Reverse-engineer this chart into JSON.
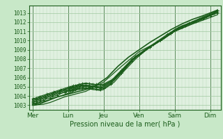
{
  "title": "",
  "xlabel": "Pression niveau de la mer( hPa )",
  "ylabel": "",
  "background_color": "#c8e8c8",
  "plot_bg_color": "#e0f0e0",
  "grid_major_color": "#a0c8a0",
  "grid_minor_color": "#b8d8b8",
  "line_color": "#1a5c1a",
  "vline_color": "#5a8a5a",
  "ylim": [
    1002.5,
    1013.8
  ],
  "yticks": [
    1003,
    1004,
    1005,
    1006,
    1007,
    1008,
    1009,
    1010,
    1011,
    1012,
    1013
  ],
  "xtick_labels": [
    "Mer",
    "Lun",
    "Jeu",
    "Ven",
    "Sam",
    "Dim"
  ],
  "xtick_positions": [
    0,
    1,
    2,
    3,
    4,
    5
  ],
  "xlim": [
    -0.1,
    5.3
  ],
  "lines": [
    {
      "x": [
        0.0,
        0.15,
        0.3,
        0.5,
        0.7,
        0.9,
        1.0,
        1.1,
        1.2,
        1.5,
        2.0,
        2.5,
        3.0,
        3.5,
        4.0,
        4.5,
        5.0,
        5.2
      ],
      "y": [
        1003.0,
        1003.05,
        1003.1,
        1003.3,
        1003.6,
        1003.9,
        1004.0,
        1004.1,
        1004.2,
        1004.5,
        1005.5,
        1007.2,
        1008.8,
        1009.8,
        1011.0,
        1011.8,
        1012.5,
        1012.8
      ],
      "marker": null,
      "lw": 0.9
    },
    {
      "x": [
        0.0,
        0.1,
        0.2,
        0.4,
        0.6,
        0.8,
        1.0,
        1.1,
        1.15,
        1.2,
        1.3,
        1.4,
        1.5,
        1.6,
        1.7,
        1.8,
        1.9,
        2.0,
        2.3,
        2.6,
        2.9,
        3.2,
        3.5,
        3.8,
        4.0,
        4.2,
        4.5,
        4.8,
        5.0,
        5.2
      ],
      "y": [
        1003.1,
        1003.15,
        1003.3,
        1003.5,
        1003.8,
        1004.0,
        1004.3,
        1004.4,
        1004.5,
        1004.6,
        1004.7,
        1004.75,
        1004.8,
        1004.75,
        1004.7,
        1004.65,
        1004.6,
        1004.7,
        1005.5,
        1006.8,
        1008.0,
        1009.0,
        1009.8,
        1010.5,
        1011.2,
        1011.6,
        1012.0,
        1012.4,
        1012.7,
        1013.0
      ],
      "marker": null,
      "lw": 0.9
    },
    {
      "x": [
        0.0,
        0.1,
        0.2,
        0.3,
        0.5,
        0.7,
        0.9,
        1.0,
        1.05,
        1.1,
        1.15,
        1.2,
        1.3,
        1.4,
        1.5,
        1.6,
        1.7,
        1.8,
        1.9,
        2.0,
        2.2,
        2.5,
        2.8,
        3.0,
        3.3,
        3.6,
        3.9,
        4.2,
        4.5,
        4.8,
        5.0,
        5.2
      ],
      "y": [
        1003.2,
        1003.25,
        1003.4,
        1003.55,
        1003.8,
        1004.1,
        1004.4,
        1004.5,
        1004.55,
        1004.6,
        1004.65,
        1004.7,
        1004.8,
        1004.85,
        1004.9,
        1004.85,
        1004.8,
        1004.75,
        1004.7,
        1004.8,
        1005.3,
        1006.5,
        1007.8,
        1008.5,
        1009.3,
        1010.0,
        1010.8,
        1011.5,
        1012.0,
        1012.4,
        1012.7,
        1013.0
      ],
      "marker": "+",
      "lw": 0.8
    },
    {
      "x": [
        0.0,
        0.1,
        0.2,
        0.35,
        0.55,
        0.75,
        0.95,
        1.0,
        1.05,
        1.1,
        1.15,
        1.2,
        1.25,
        1.3,
        1.4,
        1.5,
        1.6,
        1.7,
        1.8,
        1.9,
        2.0,
        2.2,
        2.5,
        2.8,
        3.0,
        3.3,
        3.6,
        3.9,
        4.2,
        4.5,
        4.8,
        5.0,
        5.2
      ],
      "y": [
        1003.3,
        1003.4,
        1003.55,
        1003.75,
        1004.0,
        1004.3,
        1004.55,
        1004.6,
        1004.65,
        1004.7,
        1004.75,
        1004.8,
        1004.85,
        1004.9,
        1005.0,
        1005.05,
        1005.0,
        1004.95,
        1004.9,
        1004.85,
        1004.9,
        1005.4,
        1006.5,
        1007.8,
        1008.5,
        1009.3,
        1010.0,
        1010.8,
        1011.5,
        1012.0,
        1012.5,
        1012.8,
        1013.1
      ],
      "marker": "+",
      "lw": 0.8
    },
    {
      "x": [
        0.0,
        0.1,
        0.2,
        0.35,
        0.55,
        0.75,
        0.9,
        1.0,
        1.05,
        1.1,
        1.15,
        1.2,
        1.25,
        1.3,
        1.35,
        1.4,
        1.5,
        1.6,
        1.7,
        1.8,
        1.9,
        2.0,
        2.2,
        2.5,
        2.8,
        3.1,
        3.4,
        3.7,
        4.0,
        4.3,
        4.6,
        4.9,
        5.1,
        5.2
      ],
      "y": [
        1003.4,
        1003.5,
        1003.65,
        1003.85,
        1004.1,
        1004.4,
        1004.6,
        1004.7,
        1004.75,
        1004.8,
        1004.85,
        1004.9,
        1004.95,
        1005.0,
        1005.05,
        1005.1,
        1005.1,
        1005.05,
        1005.0,
        1004.95,
        1004.9,
        1005.0,
        1005.5,
        1006.7,
        1007.9,
        1008.7,
        1009.5,
        1010.2,
        1011.0,
        1011.5,
        1012.0,
        1012.5,
        1012.9,
        1013.2
      ],
      "marker": null,
      "lw": 0.9
    },
    {
      "x": [
        0.0,
        0.1,
        0.2,
        0.35,
        0.55,
        0.75,
        0.9,
        1.0,
        1.05,
        1.1,
        1.15,
        1.2,
        1.25,
        1.3,
        1.35,
        1.4,
        1.5,
        1.6,
        1.7,
        1.8,
        1.9,
        2.0,
        2.2,
        2.5,
        2.8,
        3.1,
        3.4,
        3.7,
        4.0,
        4.3,
        4.6,
        4.9,
        5.1,
        5.2
      ],
      "y": [
        1003.5,
        1003.6,
        1003.75,
        1003.95,
        1004.2,
        1004.5,
        1004.7,
        1004.8,
        1004.85,
        1004.9,
        1004.95,
        1005.0,
        1005.05,
        1005.1,
        1005.15,
        1005.2,
        1005.2,
        1005.15,
        1005.1,
        1005.05,
        1005.0,
        1005.1,
        1005.6,
        1006.8,
        1008.0,
        1008.8,
        1009.6,
        1010.3,
        1011.1,
        1011.6,
        1012.1,
        1012.6,
        1013.0,
        1013.3
      ],
      "marker": "+",
      "lw": 0.8
    },
    {
      "x": [
        0.0,
        0.1,
        0.2,
        0.4,
        0.6,
        0.8,
        1.0,
        1.05,
        1.1,
        1.2,
        1.3,
        1.4,
        1.5,
        1.6,
        1.7,
        1.8,
        1.9,
        2.0,
        2.3,
        2.6,
        2.9,
        3.2,
        3.5,
        3.8,
        4.1,
        4.4,
        4.7,
        5.0,
        5.2
      ],
      "y": [
        1003.6,
        1003.7,
        1003.85,
        1004.1,
        1004.35,
        1004.6,
        1004.85,
        1004.9,
        1004.95,
        1005.1,
        1005.2,
        1005.3,
        1005.35,
        1005.3,
        1005.25,
        1005.2,
        1005.15,
        1005.2,
        1005.8,
        1007.0,
        1008.2,
        1009.0,
        1009.8,
        1010.6,
        1011.3,
        1011.8,
        1012.3,
        1012.8,
        1013.2
      ],
      "marker": null,
      "lw": 0.9
    },
    {
      "x": [
        0.0,
        0.1,
        0.2,
        0.4,
        0.6,
        0.8,
        1.0,
        1.05,
        1.1,
        1.15,
        1.2,
        1.3,
        1.4,
        1.5,
        1.6,
        1.7,
        1.8,
        1.9,
        2.0,
        2.3,
        2.6,
        2.9,
        3.2,
        3.5,
        3.8,
        4.1,
        4.4,
        4.7,
        5.0,
        5.2
      ],
      "y": [
        1003.7,
        1003.8,
        1003.95,
        1004.2,
        1004.45,
        1004.7,
        1004.95,
        1005.0,
        1005.05,
        1005.1,
        1005.15,
        1005.25,
        1005.35,
        1005.4,
        1005.35,
        1005.3,
        1005.25,
        1005.2,
        1005.3,
        1005.9,
        1007.1,
        1008.3,
        1009.1,
        1009.9,
        1010.7,
        1011.4,
        1011.9,
        1012.4,
        1012.9,
        1013.3
      ],
      "marker": "+",
      "lw": 0.8
    },
    {
      "x": [
        0.0,
        0.05,
        0.1,
        0.15,
        0.2,
        0.3,
        0.5,
        0.7,
        0.9,
        1.0,
        1.1,
        1.2,
        1.3,
        1.5,
        1.8,
        2.1,
        2.4,
        2.7,
        3.0,
        3.3,
        3.6,
        3.9,
        4.2,
        4.5,
        4.8,
        5.0,
        5.2
      ],
      "y": [
        1003.0,
        1003.0,
        1003.05,
        1003.1,
        1003.15,
        1003.3,
        1003.6,
        1003.9,
        1004.1,
        1004.2,
        1004.3,
        1004.4,
        1004.5,
        1004.7,
        1005.2,
        1006.0,
        1007.2,
        1008.2,
        1009.0,
        1009.8,
        1010.5,
        1011.2,
        1011.8,
        1012.3,
        1012.7,
        1013.0,
        1013.3
      ],
      "marker": null,
      "lw": 1.2
    }
  ]
}
